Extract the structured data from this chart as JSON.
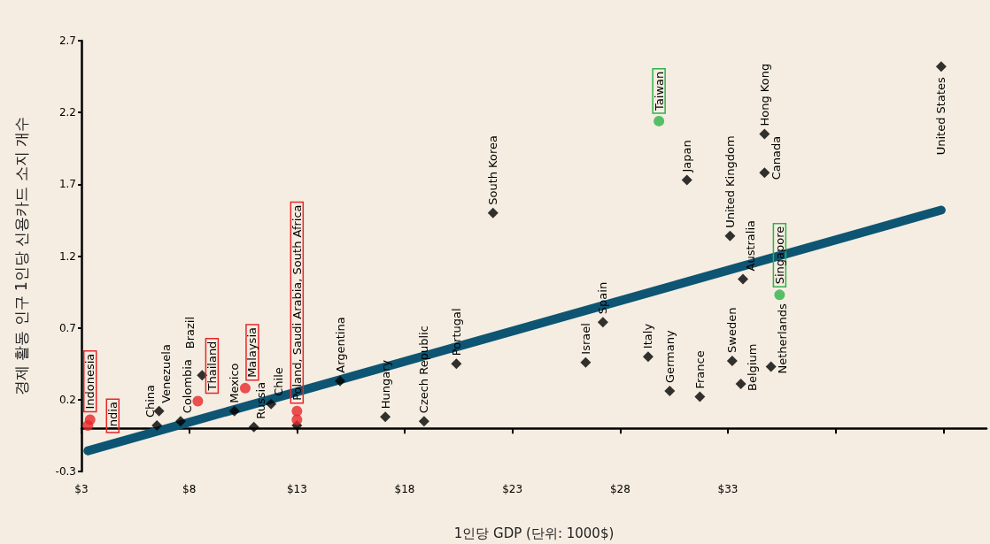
{
  "chart_data": {
    "type": "scatter",
    "xlabel": "1인당 GDP (단위: 1000$)",
    "ylabel": "경제 활동 인구 1인당 신용카드 소지 개수",
    "xlim": [
      3,
      45
    ],
    "xticks": [
      {
        "value": 3,
        "label": "$3"
      },
      {
        "value": 8,
        "label": "$8"
      },
      {
        "value": 13,
        "label": "$13"
      },
      {
        "value": 18,
        "label": "$18"
      },
      {
        "value": 23,
        "label": "$23"
      },
      {
        "value": 28,
        "label": "$28"
      },
      {
        "value": 33,
        "label": "$33"
      },
      {
        "value": 38,
        "label": null
      },
      {
        "value": 43,
        "label": null
      }
    ],
    "ylim": [
      -0.3,
      2.7
    ],
    "yticks": [
      -0.3,
      0.2,
      0.7,
      1.2,
      1.7,
      2.2,
      2.7
    ],
    "grid": false,
    "series": [
      {
        "marker": "diamond",
        "color": "#000000",
        "x": [
          6.5,
          6.6,
          7.6,
          8.6,
          10.1,
          11.0,
          11.8,
          13.0,
          15.0,
          17.1,
          18.9,
          20.4,
          22.1,
          26.4,
          27.2,
          29.3,
          30.3,
          31.1,
          31.7,
          33.1,
          33.2,
          33.7,
          33.6,
          34.7,
          34.7,
          35.0,
          42.9
        ],
        "values": [
          0.02,
          0.12,
          0.05,
          0.37,
          0.12,
          0.01,
          0.17,
          0.02,
          0.33,
          0.08,
          0.05,
          0.45,
          1.5,
          0.46,
          0.74,
          0.5,
          0.26,
          1.73,
          0.22,
          1.34,
          0.47,
          1.04,
          0.31,
          2.05,
          1.78,
          0.43,
          2.52
        ]
      },
      {
        "marker": "circle",
        "color": "#e8262a",
        "x": [
          3.4,
          3.3,
          8.4,
          10.6,
          13.0,
          13.0
        ],
        "values": [
          0.06,
          0.02,
          0.19,
          0.28,
          0.12,
          0.06
        ]
      },
      {
        "marker": "circle",
        "color": "#2db34a",
        "x": [
          29.8,
          35.4
        ],
        "values": [
          2.14,
          0.93
        ]
      },
      {
        "type": "line",
        "marker": "none",
        "color": "#0d5573",
        "x": [
          3.3,
          42.9
        ],
        "values": [
          -0.156,
          1.52
        ]
      }
    ],
    "annotations": [
      {
        "text": "Indonesia",
        "x": 3.4,
        "y": 0.06
      },
      {
        "text": "India",
        "x": 3.3,
        "y": 0.02
      },
      {
        "text": "China",
        "x": 6.5,
        "y": 0.02
      },
      {
        "text": "Venezuela",
        "x": 6.6,
        "y": 0.12
      },
      {
        "text": "Colombia",
        "x": 7.6,
        "y": 0.05
      },
      {
        "text": "Thailand",
        "x": 8.4,
        "y": 0.19
      },
      {
        "text": "Brazil",
        "x": 8.6,
        "y": 0.37
      },
      {
        "text": "Mexico",
        "x": 10.1,
        "y": 0.12
      },
      {
        "text": "Malaysia",
        "x": 10.6,
        "y": 0.28
      },
      {
        "text": "Russia",
        "x": 11.0,
        "y": 0.01
      },
      {
        "text": "Chile",
        "x": 11.8,
        "y": 0.17
      },
      {
        "text": "Poland, Saudi Arabia, South Africa",
        "x": 13.0,
        "y": 0.12
      },
      {
        "text": "Argentina",
        "x": 15.0,
        "y": 0.33
      },
      {
        "text": "Hungary",
        "x": 17.1,
        "y": 0.08
      },
      {
        "text": "Czech Republic",
        "x": 18.9,
        "y": 0.05
      },
      {
        "text": "Portugal",
        "x": 20.4,
        "y": 0.45
      },
      {
        "text": "South Korea",
        "x": 22.1,
        "y": 1.5
      },
      {
        "text": "Israel",
        "x": 26.4,
        "y": 0.46
      },
      {
        "text": "Spain",
        "x": 27.2,
        "y": 0.74
      },
      {
        "text": "Italy",
        "x": 29.3,
        "y": 0.5
      },
      {
        "text": "Germany",
        "x": 30.3,
        "y": 0.26
      },
      {
        "text": "Taiwan",
        "x": 29.8,
        "y": 2.14
      },
      {
        "text": "Japan",
        "x": 31.1,
        "y": 1.73
      },
      {
        "text": "France",
        "x": 31.7,
        "y": 0.22
      },
      {
        "text": "United Kingdom",
        "x": 33.1,
        "y": 1.34
      },
      {
        "text": "Sweden",
        "x": 33.2,
        "y": 0.47
      },
      {
        "text": "Australia",
        "x": 33.7,
        "y": 1.04
      },
      {
        "text": "Belgium",
        "x": 33.6,
        "y": 0.31
      },
      {
        "text": "Hong Kong",
        "x": 34.7,
        "y": 2.05
      },
      {
        "text": "Canada",
        "x": 34.7,
        "y": 1.78
      },
      {
        "text": "Netherlands",
        "x": 35.0,
        "y": 0.43
      },
      {
        "text": "Singapore",
        "x": 35.4,
        "y": 0.93
      },
      {
        "text": "United States",
        "x": 42.9,
        "y": 2.52
      }
    ]
  }
}
